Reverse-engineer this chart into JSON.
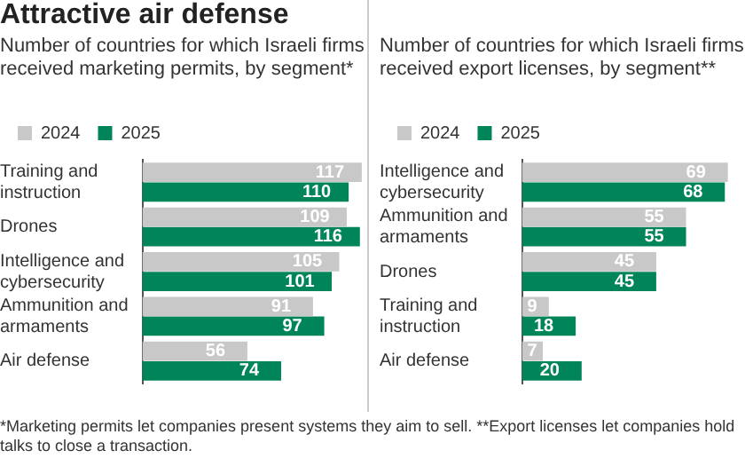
{
  "chart_data": [
    {
      "type": "bar",
      "orientation": "horizontal",
      "title": "Attractive air defense",
      "subtitle": "Number of countries for which Israeli firms received marketing permits, by segment*",
      "categories": [
        "Training and instruction",
        "Drones",
        "Intelligence and cybersecurity",
        "Ammunition and armaments",
        "Air defense"
      ],
      "series": [
        {
          "name": "2024",
          "color": "#c8c8c8",
          "values": [
            117,
            109,
            105,
            91,
            56
          ]
        },
        {
          "name": "2025",
          "color": "#00845a",
          "values": [
            110,
            116,
            101,
            97,
            74
          ]
        }
      ],
      "xlim": [
        0,
        118
      ],
      "tick_labels": "y",
      "grid": false,
      "legend": "top left",
      "data_labels": true,
      "annotations": [
        "*Marketing permits let companies present systems they aim to sell. **Export licenses let companies hold talks to close a transaction."
      ]
    },
    {
      "type": "bar",
      "orientation": "horizontal",
      "subtitle": "Number of countries for which Israeli firms received export licenses, by segment**",
      "categories": [
        "Intelligence and cybersecurity",
        "Ammunition and armaments",
        "Drones",
        "Training and instruction",
        "Air defense"
      ],
      "series": [
        {
          "name": "2024",
          "color": "#c8c8c8",
          "values": [
            69,
            55,
            45,
            9,
            7
          ]
        },
        {
          "name": "2025",
          "color": "#00845a",
          "values": [
            68,
            55,
            45,
            18,
            20
          ]
        }
      ],
      "xlim": [
        0,
        70
      ],
      "tick_labels": "y",
      "grid": false,
      "legend": "top left",
      "data_labels": true
    }
  ]
}
